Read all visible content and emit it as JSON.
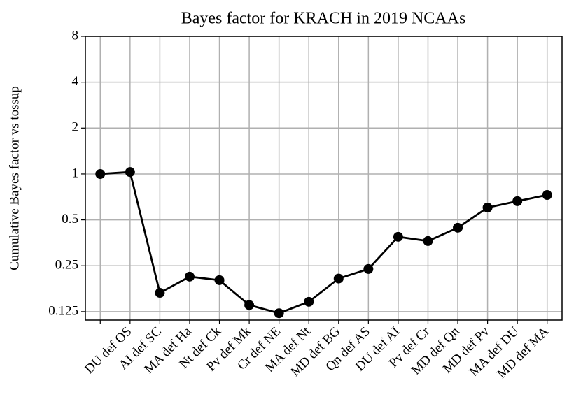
{
  "chart_data": {
    "type": "line",
    "title": "Bayes factor for KRACH in 2019 NCAAs",
    "y_label": "Cumulative Bayes factor vs tossup",
    "categories": [
      null,
      "DU def OS",
      "AI def SC",
      "MA def Ha",
      "Nt def Ck",
      "Pv def Mk",
      "Cr def NE",
      "MA def Nt",
      "MD def BG",
      "Qn def AS",
      "DU def AI",
      "Pv def Cr",
      "MD def Qn",
      "MD def Pv",
      "MA def DU",
      "MD def MA"
    ],
    "values": [
      1.0,
      1.03,
      0.166,
      0.212,
      0.201,
      0.138,
      0.122,
      0.145,
      0.206,
      0.238,
      0.387,
      0.363,
      0.444,
      0.602,
      0.663,
      0.728
    ],
    "color": "#000000",
    "yscale": "log",
    "ylim": [
      0.11,
      8
    ],
    "yticks": [
      0.125,
      0.25,
      0.5,
      1,
      2,
      4,
      8
    ],
    "grid": true
  }
}
